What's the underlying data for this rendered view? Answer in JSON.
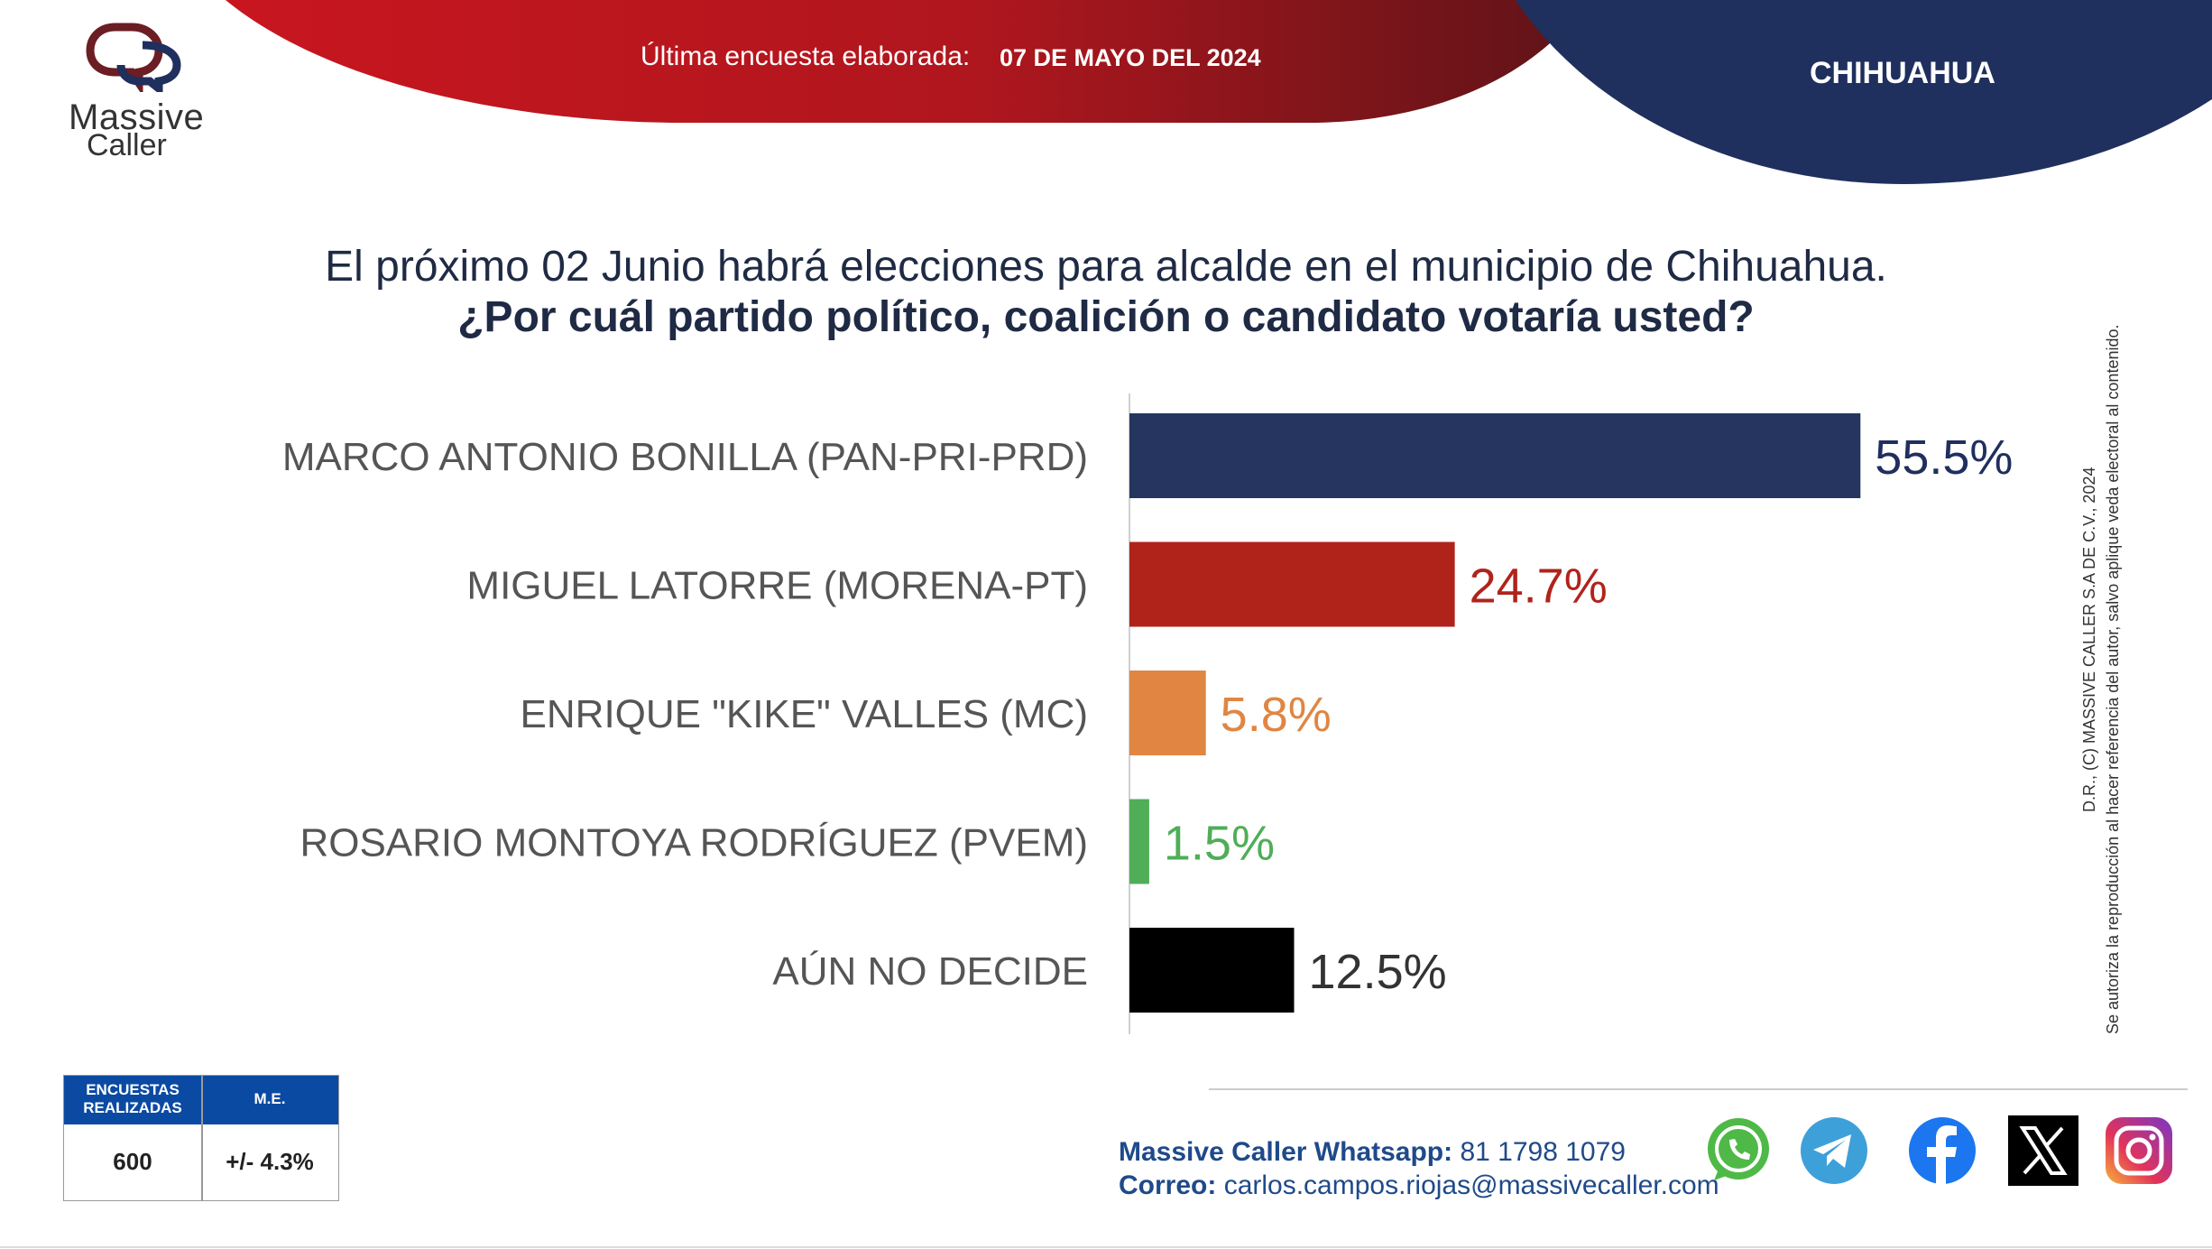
{
  "header": {
    "logo": {
      "line1": "Massive",
      "line2": "Caller"
    },
    "survey_label": "Última encuesta elaborada:",
    "survey_date": "07 DE MAYO DEL 2024",
    "region": "CHIHUAHUA"
  },
  "question": {
    "line1": "El próximo 02 Junio habrá elecciones para alcalde en el municipio de Chihuahua.",
    "line2": "¿Por cuál partido político, coalición o candidato votaría usted?"
  },
  "chart_data": {
    "type": "bar",
    "orientation": "horizontal",
    "categories": [
      "MARCO ANTONIO BONILLA (PAN-PRI-PRD)",
      "MIGUEL LATORRE (MORENA-PT)",
      "ENRIQUE \"KIKE\" VALLES (MC)",
      "ROSARIO MONTOYA RODRÍGUEZ (PVEM)",
      "AÚN NO DECIDE"
    ],
    "values": [
      55.5,
      24.7,
      5.8,
      1.5,
      12.5
    ],
    "value_labels": [
      "55.5%",
      "24.7%",
      "5.8%",
      "1.5%",
      "12.5%"
    ],
    "colors": [
      "#253560",
      "#b0231b",
      "#e08642",
      "#4fae57",
      "#000000"
    ],
    "label_colors": [
      "#1f2f5e",
      "#b0231b",
      "#e08642",
      "#4fae57",
      "#333333"
    ],
    "xlim": [
      0,
      100
    ],
    "grid": false,
    "legend": "none"
  },
  "sample": {
    "header_encuestas": "ENCUESTAS REALIZADAS",
    "header_me": "M.E.",
    "encuestas": "600",
    "me": "+/- 4.3%"
  },
  "contact": {
    "whatsapp_label": "Massive Caller Whatsapp:",
    "whatsapp_number": "81 1798 1079",
    "email_label": "Correo:",
    "email": "carlos.campos.riojas@massivecaller.com"
  },
  "social_icons": [
    "whatsapp-icon",
    "telegram-icon",
    "facebook-icon",
    "x-icon",
    "instagram-icon"
  ],
  "copyright": {
    "line1": "D.R., (C) MASSIVE CALLER S.A DE C.V., 2024",
    "line2": "Se autoriza la reproducción al hacer referencia del autor, salvo aplique veda electoral al contenido."
  },
  "colors": {
    "brand_red": "#b3161f",
    "brand_navy": "#1f2f5e",
    "table_header": "#0b4aa2"
  }
}
